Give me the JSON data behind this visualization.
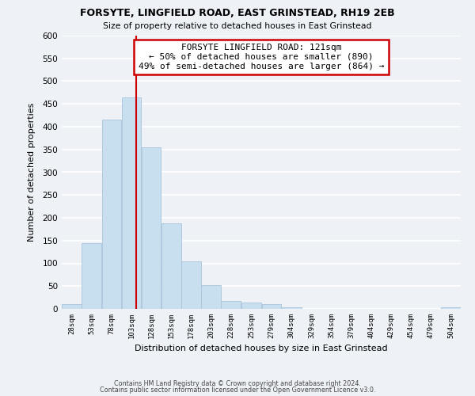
{
  "title": "FORSYTE, LINGFIELD ROAD, EAST GRINSTEAD, RH19 2EB",
  "subtitle": "Size of property relative to detached houses in East Grinstead",
  "xlabel": "Distribution of detached houses by size in East Grinstead",
  "ylabel": "Number of detached properties",
  "bar_color": "#c8dff0",
  "bar_edge_color": "#a8c4dc",
  "bins": [
    28,
    53,
    78,
    103,
    128,
    153,
    178,
    203,
    228,
    253,
    279,
    304,
    329,
    354,
    379,
    404,
    429,
    454,
    479,
    504,
    529
  ],
  "counts": [
    10,
    145,
    415,
    465,
    355,
    188,
    105,
    53,
    18,
    14,
    10,
    3,
    0,
    0,
    0,
    0,
    0,
    0,
    0,
    3
  ],
  "property_size": 121,
  "vline_color": "#cc0000",
  "annotation_line1": "FORSYTE LINGFIELD ROAD: 121sqm",
  "annotation_line2": "← 50% of detached houses are smaller (890)",
  "annotation_line3": "49% of semi-detached houses are larger (864) →",
  "annotation_box_color": "#ffffff",
  "annotation_box_edge": "#cc0000",
  "ylim": [
    0,
    600
  ],
  "yticks": [
    0,
    50,
    100,
    150,
    200,
    250,
    300,
    350,
    400,
    450,
    500,
    550,
    600
  ],
  "footer_line1": "Contains HM Land Registry data © Crown copyright and database right 2024.",
  "footer_line2": "Contains public sector information licensed under the Open Government Licence v3.0.",
  "background_color": "#eef2f7",
  "grid_color": "#ffffff"
}
